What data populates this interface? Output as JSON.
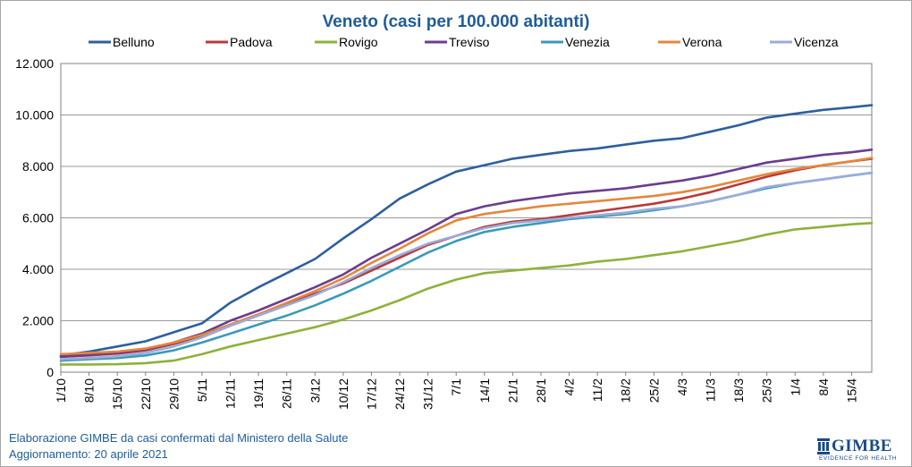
{
  "chart_data": {
    "type": "line",
    "title": "Veneto (casi per 100.000 abitanti)",
    "xlabel": "",
    "ylabel": "",
    "ylim": [
      0,
      12000
    ],
    "yticks": [
      {
        "value": 0,
        "label": "0"
      },
      {
        "value": 2000,
        "label": "2.000"
      },
      {
        "value": 4000,
        "label": "4.000"
      },
      {
        "value": 6000,
        "label": "6.000"
      },
      {
        "value": 8000,
        "label": "8.000"
      },
      {
        "value": 10000,
        "label": "10.000"
      },
      {
        "value": 12000,
        "label": "12.000"
      }
    ],
    "xticks": [
      "1/10",
      "8/10",
      "15/10",
      "22/10",
      "29/10",
      "5/11",
      "12/11",
      "19/11",
      "26/11",
      "3/12",
      "10/12",
      "17/12",
      "24/12",
      "31/12",
      "7/1",
      "14/1",
      "21/1",
      "28/1",
      "4/2",
      "11/2",
      "18/2",
      "25/2",
      "4/3",
      "11/3",
      "18/3",
      "25/3",
      "1/4",
      "8/4",
      "15/4"
    ],
    "x_end": "20/4",
    "grid": "horizontal",
    "legend": "top",
    "series": [
      {
        "name": "Belluno",
        "color": "#2e5f9e",
        "points": [
          [
            "1/10",
            650
          ],
          [
            "8/10",
            800
          ],
          [
            "15/10",
            1000
          ],
          [
            "22/10",
            1200
          ],
          [
            "29/10",
            1550
          ],
          [
            "5/11",
            1900
          ],
          [
            "12/11",
            2700
          ],
          [
            "19/11",
            3300
          ],
          [
            "26/11",
            3850
          ],
          [
            "3/12",
            4400
          ],
          [
            "10/12",
            5200
          ],
          [
            "17/12",
            5950
          ],
          [
            "24/12",
            6750
          ],
          [
            "31/12",
            7300
          ],
          [
            "7/1",
            7800
          ],
          [
            "14/1",
            8050
          ],
          [
            "21/1",
            8300
          ],
          [
            "28/1",
            8450
          ],
          [
            "4/2",
            8600
          ],
          [
            "11/2",
            8700
          ],
          [
            "18/2",
            8850
          ],
          [
            "25/2",
            9000
          ],
          [
            "4/3",
            9100
          ],
          [
            "11/3",
            9350
          ],
          [
            "18/3",
            9600
          ],
          [
            "25/3",
            9900
          ],
          [
            "1/4",
            10050
          ],
          [
            "8/4",
            10200
          ],
          [
            "15/4",
            10300
          ],
          [
            "20/4",
            10380
          ]
        ]
      },
      {
        "name": "Padova",
        "color": "#b83a3a",
        "points": [
          [
            "1/10",
            600
          ],
          [
            "8/10",
            650
          ],
          [
            "15/10",
            720
          ],
          [
            "22/10",
            850
          ],
          [
            "29/10",
            1100
          ],
          [
            "5/11",
            1400
          ],
          [
            "12/11",
            1850
          ],
          [
            "19/11",
            2250
          ],
          [
            "26/11",
            2650
          ],
          [
            "3/12",
            3050
          ],
          [
            "10/12",
            3450
          ],
          [
            "17/12",
            3950
          ],
          [
            "24/12",
            4450
          ],
          [
            "31/12",
            4950
          ],
          [
            "7/1",
            5300
          ],
          [
            "14/1",
            5650
          ],
          [
            "21/1",
            5850
          ],
          [
            "28/1",
            5950
          ],
          [
            "4/2",
            6100
          ],
          [
            "11/2",
            6250
          ],
          [
            "18/2",
            6400
          ],
          [
            "25/2",
            6550
          ],
          [
            "4/3",
            6750
          ],
          [
            "11/3",
            7000
          ],
          [
            "18/3",
            7300
          ],
          [
            "25/3",
            7600
          ],
          [
            "1/4",
            7850
          ],
          [
            "8/4",
            8050
          ],
          [
            "15/4",
            8200
          ],
          [
            "20/4",
            8300
          ]
        ]
      },
      {
        "name": "Rovigo",
        "color": "#8db23a",
        "points": [
          [
            "1/10",
            300
          ],
          [
            "8/10",
            300
          ],
          [
            "15/10",
            310
          ],
          [
            "22/10",
            350
          ],
          [
            "29/10",
            450
          ],
          [
            "5/11",
            700
          ],
          [
            "12/11",
            1000
          ],
          [
            "19/11",
            1250
          ],
          [
            "26/11",
            1500
          ],
          [
            "3/12",
            1750
          ],
          [
            "10/12",
            2050
          ],
          [
            "17/12",
            2400
          ],
          [
            "24/12",
            2800
          ],
          [
            "31/12",
            3250
          ],
          [
            "7/1",
            3600
          ],
          [
            "14/1",
            3850
          ],
          [
            "21/1",
            3950
          ],
          [
            "28/1",
            4050
          ],
          [
            "4/2",
            4150
          ],
          [
            "11/2",
            4300
          ],
          [
            "18/2",
            4400
          ],
          [
            "25/2",
            4550
          ],
          [
            "4/3",
            4700
          ],
          [
            "11/3",
            4900
          ],
          [
            "18/3",
            5100
          ],
          [
            "25/3",
            5350
          ],
          [
            "1/4",
            5550
          ],
          [
            "8/4",
            5650
          ],
          [
            "15/4",
            5750
          ],
          [
            "20/4",
            5800
          ]
        ]
      },
      {
        "name": "Treviso",
        "color": "#6a3d8f",
        "points": [
          [
            "1/10",
            600
          ],
          [
            "8/10",
            680
          ],
          [
            "15/10",
            750
          ],
          [
            "22/10",
            880
          ],
          [
            "29/10",
            1150
          ],
          [
            "5/11",
            1500
          ],
          [
            "12/11",
            2000
          ],
          [
            "19/11",
            2400
          ],
          [
            "26/11",
            2850
          ],
          [
            "3/12",
            3300
          ],
          [
            "10/12",
            3800
          ],
          [
            "17/12",
            4450
          ],
          [
            "24/12",
            5000
          ],
          [
            "31/12",
            5550
          ],
          [
            "7/1",
            6150
          ],
          [
            "14/1",
            6450
          ],
          [
            "21/1",
            6650
          ],
          [
            "28/1",
            6800
          ],
          [
            "4/2",
            6950
          ],
          [
            "11/2",
            7050
          ],
          [
            "18/2",
            7150
          ],
          [
            "25/2",
            7300
          ],
          [
            "4/3",
            7450
          ],
          [
            "11/3",
            7650
          ],
          [
            "18/3",
            7900
          ],
          [
            "25/3",
            8150
          ],
          [
            "1/4",
            8300
          ],
          [
            "8/4",
            8450
          ],
          [
            "15/4",
            8550
          ],
          [
            "20/4",
            8650
          ]
        ]
      },
      {
        "name": "Venezia",
        "color": "#3a9ab8",
        "points": [
          [
            "1/10",
            450
          ],
          [
            "8/10",
            500
          ],
          [
            "15/10",
            550
          ],
          [
            "22/10",
            650
          ],
          [
            "29/10",
            850
          ],
          [
            "5/11",
            1150
          ],
          [
            "12/11",
            1500
          ],
          [
            "19/11",
            1850
          ],
          [
            "26/11",
            2200
          ],
          [
            "3/12",
            2600
          ],
          [
            "10/12",
            3050
          ],
          [
            "17/12",
            3550
          ],
          [
            "24/12",
            4100
          ],
          [
            "31/12",
            4650
          ],
          [
            "7/1",
            5100
          ],
          [
            "14/1",
            5450
          ],
          [
            "21/1",
            5650
          ],
          [
            "28/1",
            5800
          ],
          [
            "4/2",
            5950
          ],
          [
            "11/2",
            6050
          ],
          [
            "18/2",
            6150
          ],
          [
            "25/2",
            6300
          ],
          [
            "4/3",
            6450
          ],
          [
            "11/3",
            6650
          ],
          [
            "18/3",
            6900
          ],
          [
            "25/3",
            7150
          ],
          [
            "1/4",
            7350
          ],
          [
            "8/4",
            7500
          ],
          [
            "15/4",
            7650
          ],
          [
            "20/4",
            7750
          ]
        ]
      },
      {
        "name": "Verona",
        "color": "#e5873a",
        "points": [
          [
            "1/10",
            700
          ],
          [
            "8/10",
            750
          ],
          [
            "15/10",
            800
          ],
          [
            "22/10",
            920
          ],
          [
            "29/10",
            1150
          ],
          [
            "5/11",
            1450
          ],
          [
            "12/11",
            1850
          ],
          [
            "19/11",
            2250
          ],
          [
            "26/11",
            2700
          ],
          [
            "3/12",
            3150
          ],
          [
            "10/12",
            3650
          ],
          [
            "17/12",
            4250
          ],
          [
            "24/12",
            4800
          ],
          [
            "31/12",
            5400
          ],
          [
            "7/1",
            5900
          ],
          [
            "14/1",
            6150
          ],
          [
            "21/1",
            6300
          ],
          [
            "28/1",
            6450
          ],
          [
            "4/2",
            6550
          ],
          [
            "11/2",
            6650
          ],
          [
            "18/2",
            6750
          ],
          [
            "25/2",
            6850
          ],
          [
            "4/3",
            7000
          ],
          [
            "11/3",
            7200
          ],
          [
            "18/3",
            7450
          ],
          [
            "25/3",
            7700
          ],
          [
            "1/4",
            7900
          ],
          [
            "8/4",
            8050
          ],
          [
            "15/4",
            8200
          ],
          [
            "20/4",
            8330
          ]
        ]
      },
      {
        "name": "Vicenza",
        "color": "#9aacdb",
        "points": [
          [
            "1/10",
            500
          ],
          [
            "8/10",
            550
          ],
          [
            "15/10",
            620
          ],
          [
            "22/10",
            750
          ],
          [
            "29/10",
            1000
          ],
          [
            "5/11",
            1350
          ],
          [
            "12/11",
            1800
          ],
          [
            "19/11",
            2200
          ],
          [
            "26/11",
            2600
          ],
          [
            "3/12",
            3000
          ],
          [
            "10/12",
            3500
          ],
          [
            "17/12",
            4050
          ],
          [
            "24/12",
            4550
          ],
          [
            "31/12",
            5000
          ],
          [
            "7/1",
            5300
          ],
          [
            "14/1",
            5600
          ],
          [
            "21/1",
            5800
          ],
          [
            "28/1",
            5900
          ],
          [
            "4/2",
            6000
          ],
          [
            "11/2",
            6100
          ],
          [
            "18/2",
            6200
          ],
          [
            "25/2",
            6350
          ],
          [
            "4/3",
            6450
          ],
          [
            "11/3",
            6650
          ],
          [
            "18/3",
            6900
          ],
          [
            "25/3",
            7200
          ],
          [
            "1/4",
            7350
          ],
          [
            "8/4",
            7500
          ],
          [
            "15/4",
            7650
          ],
          [
            "20/4",
            7750
          ]
        ]
      }
    ]
  },
  "footer": {
    "source": "Elaborazione GIMBE da casi confermati dal Ministero della Salute",
    "updated": "Aggiornamento: 20 aprile 2021"
  },
  "logo": {
    "name": "GIMBE",
    "tagline": "EVIDENCE FOR HEALTH",
    "color": "#1a4a86"
  }
}
